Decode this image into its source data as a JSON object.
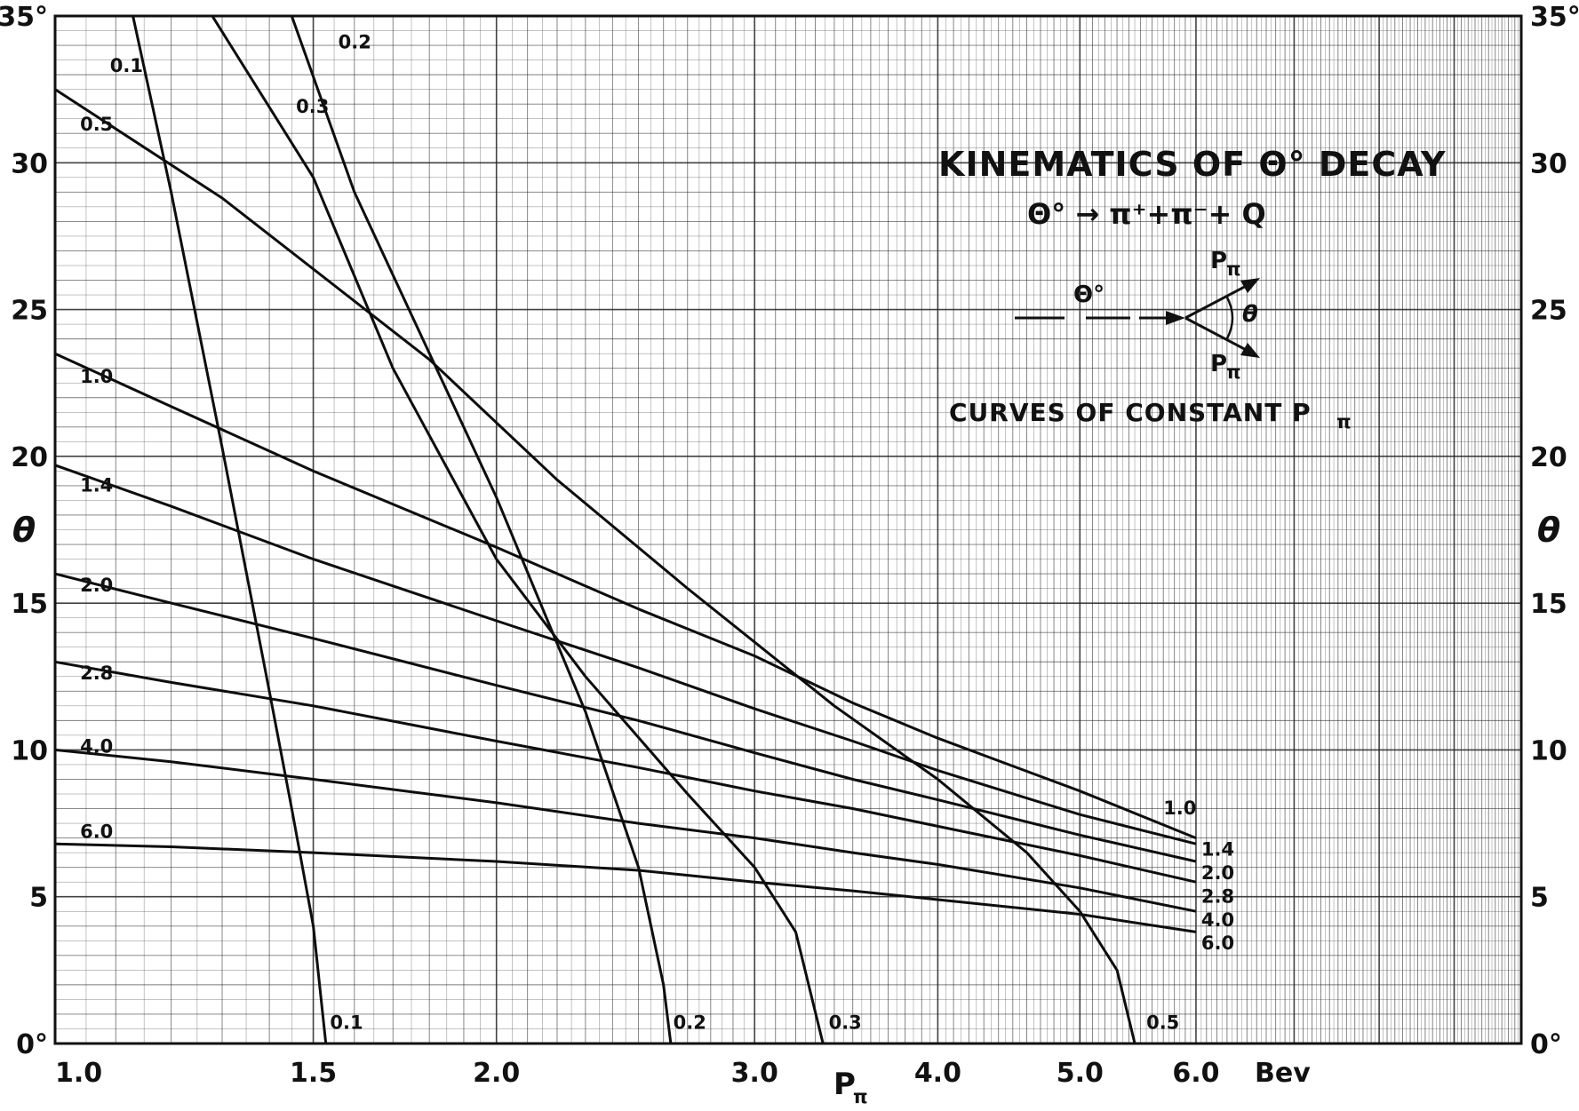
{
  "chart_data": {
    "type": "line",
    "title": "KINEMATICS OF Θ° DECAY",
    "subtitle": "Θ° → π⁺+π⁻+ Q",
    "caption": "CURVES OF CONSTANT P",
    "caption_subscript": "π",
    "xlabel": "P",
    "xlabel_subscript": "π",
    "x_unit": "Bev",
    "ylabel": "θ",
    "xscale": "log",
    "xlim": [
      1.0,
      10.0
    ],
    "ylim": [
      0,
      35
    ],
    "x_ticks": [
      {
        "value": 1.0,
        "label": "1.0"
      },
      {
        "value": 1.5,
        "label": "1.5"
      },
      {
        "value": 2.0,
        "label": "2.0"
      },
      {
        "value": 3.0,
        "label": "3.0"
      },
      {
        "value": 4.0,
        "label": "4.0"
      },
      {
        "value": 5.0,
        "label": "5.0"
      },
      {
        "value": 6.0,
        "label": "6.0"
      }
    ],
    "y_ticks": [
      {
        "value": 0,
        "label": "0°"
      },
      {
        "value": 5,
        "label": "5"
      },
      {
        "value": 10,
        "label": "10"
      },
      {
        "value": 15,
        "label": "15"
      },
      {
        "value": 20,
        "label": "20"
      },
      {
        "value": 25,
        "label": "25"
      },
      {
        "value": 30,
        "label": "30"
      },
      {
        "value": 35,
        "label": "35°"
      }
    ],
    "grid": true,
    "inset_diagram": {
      "particle": "Θ°",
      "arrow_label": "P",
      "arrow_label_subscript": "π",
      "angle": "θ"
    },
    "series": [
      {
        "name": "0.1",
        "x": [
          1.13,
          1.2,
          1.3,
          1.4,
          1.45,
          1.5,
          1.53
        ],
        "y": [
          35.0,
          29.0,
          20.3,
          12.0,
          8.0,
          4.0,
          0.0
        ]
      },
      {
        "name": "0.2",
        "x": [
          1.45,
          1.6,
          2.0,
          2.3,
          2.5,
          2.6,
          2.63
        ],
        "y": [
          35.0,
          29.0,
          18.6,
          11.3,
          6.0,
          2.0,
          0.0
        ]
      },
      {
        "name": "0.3",
        "x": [
          1.28,
          1.5,
          1.7,
          2.0,
          2.3,
          2.7,
          3.0,
          3.2,
          3.34
        ],
        "y": [
          35.0,
          29.5,
          23.0,
          16.5,
          12.5,
          8.5,
          6.0,
          3.8,
          0.0
        ]
      },
      {
        "name": "0.5",
        "x": [
          1.0,
          1.3,
          1.8,
          2.2,
          2.7,
          3.4,
          4.0,
          4.6,
          5.0,
          5.3,
          5.45
        ],
        "y": [
          32.5,
          28.8,
          23.3,
          19.2,
          15.5,
          11.5,
          9.0,
          6.5,
          4.5,
          2.5,
          0.0
        ]
      },
      {
        "name": "1.0",
        "x": [
          1.0,
          1.2,
          1.5,
          2.0,
          2.5,
          3.0,
          3.5,
          4.0,
          5.0,
          6.0
        ],
        "y": [
          23.5,
          21.7,
          19.5,
          16.9,
          14.8,
          13.2,
          11.6,
          10.4,
          8.6,
          7.0
        ]
      },
      {
        "name": "1.4",
        "x": [
          1.0,
          1.2,
          1.5,
          2.0,
          2.5,
          3.0,
          3.5,
          4.0,
          5.0,
          6.0
        ],
        "y": [
          19.7,
          18.3,
          16.5,
          14.4,
          12.8,
          11.4,
          10.3,
          9.3,
          7.8,
          6.8
        ]
      },
      {
        "name": "2.0",
        "x": [
          1.0,
          1.2,
          1.5,
          2.0,
          2.5,
          3.0,
          3.5,
          4.0,
          5.0,
          6.0
        ],
        "y": [
          16.0,
          15.0,
          13.8,
          12.2,
          11.0,
          9.9,
          9.0,
          8.3,
          7.1,
          6.2
        ]
      },
      {
        "name": "2.8",
        "x": [
          1.0,
          1.2,
          1.5,
          2.0,
          2.5,
          3.0,
          3.5,
          4.0,
          5.0,
          6.0
        ],
        "y": [
          13.0,
          12.3,
          11.5,
          10.3,
          9.4,
          8.6,
          8.0,
          7.4,
          6.4,
          5.5
        ]
      },
      {
        "name": "4.0",
        "x": [
          1.0,
          1.2,
          1.5,
          2.0,
          2.5,
          3.0,
          3.5,
          4.0,
          5.0,
          6.0
        ],
        "y": [
          10.0,
          9.6,
          9.0,
          8.2,
          7.5,
          7.0,
          6.5,
          6.1,
          5.3,
          4.5
        ]
      },
      {
        "name": "6.0",
        "x": [
          1.0,
          1.2,
          1.5,
          2.0,
          2.5,
          3.0,
          3.5,
          4.0,
          5.0,
          6.0
        ],
        "y": [
          6.8,
          6.7,
          6.5,
          6.2,
          5.9,
          5.5,
          5.2,
          4.9,
          4.4,
          3.8
        ]
      }
    ],
    "curve_labels": [
      {
        "text": "0.1",
        "x": 1.09,
        "y": 33.1
      },
      {
        "text": "0.2",
        "x": 1.56,
        "y": 33.9
      },
      {
        "text": "0.3",
        "x": 1.46,
        "y": 31.7
      },
      {
        "text": "0.5",
        "x": 1.04,
        "y": 31.1
      },
      {
        "text": "1.0",
        "x": 1.04,
        "y": 22.5
      },
      {
        "text": "1.4",
        "x": 1.04,
        "y": 18.8
      },
      {
        "text": "2.0",
        "x": 1.04,
        "y": 15.4
      },
      {
        "text": "2.8",
        "x": 1.04,
        "y": 12.4
      },
      {
        "text": "4.0",
        "x": 1.04,
        "y": 9.9
      },
      {
        "text": "6.0",
        "x": 1.04,
        "y": 7.0
      },
      {
        "text": "0.1",
        "x": 1.54,
        "y": 0.5
      },
      {
        "text": "0.2",
        "x": 2.64,
        "y": 0.5
      },
      {
        "text": "0.3",
        "x": 3.37,
        "y": 0.5
      },
      {
        "text": "0.5",
        "x": 5.55,
        "y": 0.5
      },
      {
        "text": "1.0",
        "x": 5.7,
        "y": 7.8
      },
      {
        "text": "1.4",
        "x": 6.05,
        "y": 6.4
      },
      {
        "text": "2.0",
        "x": 6.05,
        "y": 5.6
      },
      {
        "text": "2.8",
        "x": 6.05,
        "y": 4.8
      },
      {
        "text": "4.0",
        "x": 6.05,
        "y": 4.0
      },
      {
        "text": "6.0",
        "x": 6.05,
        "y": 3.2
      }
    ]
  }
}
